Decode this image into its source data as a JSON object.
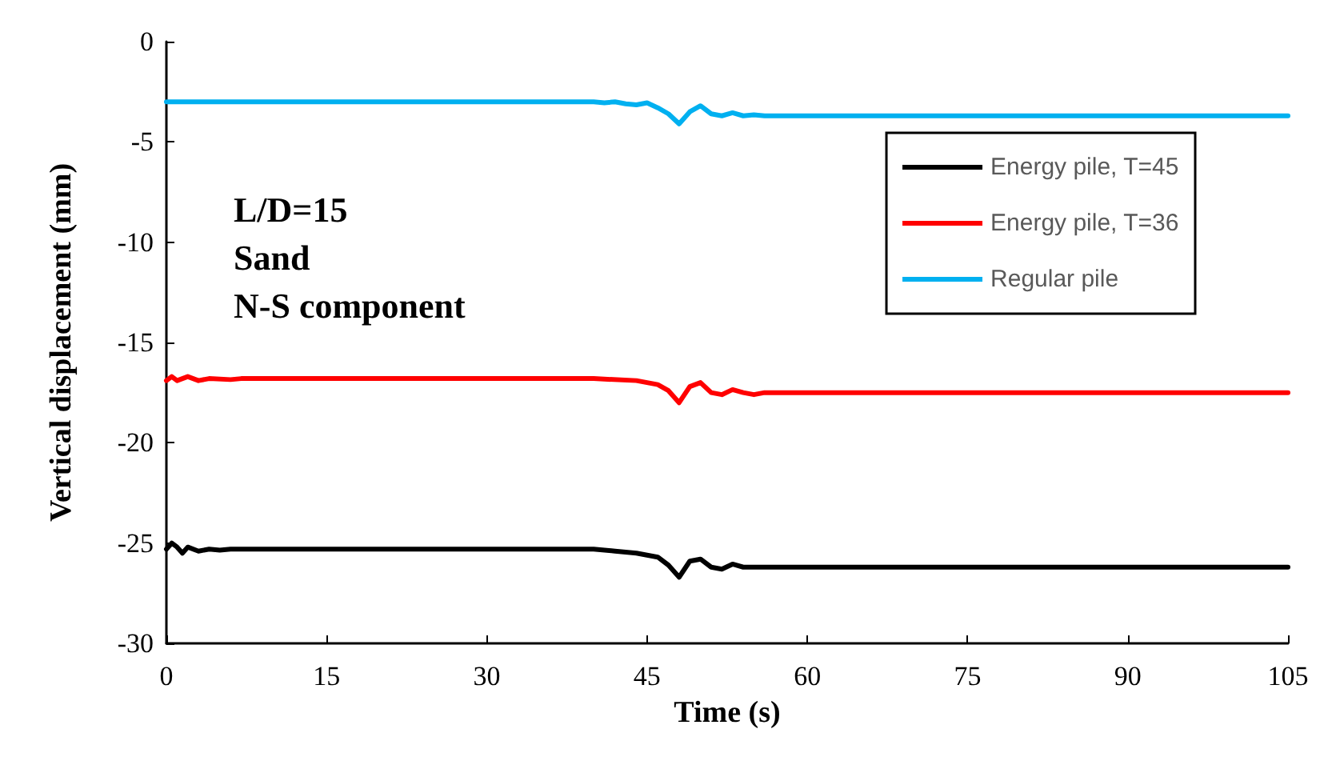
{
  "chart_data": {
    "type": "line",
    "xlabel": "Time (s)",
    "ylabel": "Vertical displacement (mm)",
    "xlim": [
      0,
      105
    ],
    "xticks": [
      0,
      15,
      30,
      45,
      60,
      75,
      90,
      105
    ],
    "ylim": [
      -30,
      0
    ],
    "yticks": [
      -30,
      -25,
      -20,
      -15,
      -10,
      -5,
      0
    ],
    "grid": false,
    "legend": "top right",
    "marker": "none",
    "line_style": "solid",
    "annotations": [
      "L/D=15",
      "Sand",
      "N-S component"
    ],
    "series": [
      {
        "name": "Energy pile, T=45",
        "color": "#000000",
        "x": [
          0,
          0.5,
          1,
          1.5,
          2,
          3,
          4,
          5,
          6,
          40,
          42,
          44,
          46,
          47,
          48,
          49,
          50,
          51,
          52,
          53,
          54,
          55,
          105
        ],
        "values": [
          -25.3,
          -25.0,
          -25.2,
          -25.5,
          -25.2,
          -25.4,
          -25.3,
          -25.35,
          -25.3,
          -25.3,
          -25.4,
          -25.5,
          -25.7,
          -26.1,
          -26.7,
          -25.9,
          -25.8,
          -26.2,
          -26.3,
          -26.05,
          -26.2,
          -26.2,
          -26.2
        ]
      },
      {
        "name": "Energy pile, T=36",
        "color": "#ff0000",
        "x": [
          0,
          0.5,
          1,
          2,
          3,
          4,
          6,
          7,
          40,
          44,
          46,
          47,
          48,
          49,
          50,
          51,
          52,
          53,
          54,
          55,
          56,
          105
        ],
        "values": [
          -16.9,
          -16.7,
          -16.9,
          -16.7,
          -16.9,
          -16.8,
          -16.85,
          -16.8,
          -16.8,
          -16.9,
          -17.1,
          -17.4,
          -18.0,
          -17.2,
          -17.0,
          -17.5,
          -17.6,
          -17.35,
          -17.5,
          -17.6,
          -17.5,
          -17.5
        ]
      },
      {
        "name": "Regular pile",
        "color": "#00b0f0",
        "x": [
          0,
          40,
          41,
          42,
          43,
          44,
          45,
          46,
          47,
          48,
          49,
          50,
          51,
          52,
          53,
          54,
          55,
          56,
          105
        ],
        "values": [
          -3,
          -3,
          -3.05,
          -3.0,
          -3.1,
          -3.15,
          -3.05,
          -3.3,
          -3.6,
          -4.1,
          -3.5,
          -3.2,
          -3.6,
          -3.7,
          -3.55,
          -3.7,
          -3.65,
          -3.7,
          -3.7
        ]
      }
    ]
  }
}
